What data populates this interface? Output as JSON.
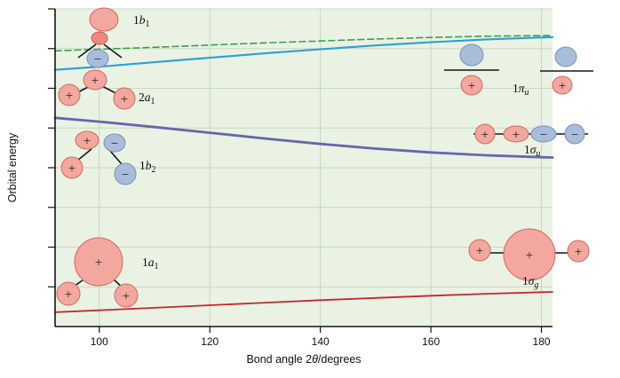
{
  "signs": {
    "plus": "+",
    "minus": "−"
  },
  "orbital_labels": {
    "b1": {
      "pre": "1",
      "sym": "b",
      "sub": "1"
    },
    "a1_upper": {
      "pre": "2",
      "sym": "a",
      "sub": "1"
    },
    "b2": {
      "pre": "1",
      "sym": "b",
      "sub": "2"
    },
    "a1_lower": {
      "pre": "1",
      "sym": "a",
      "sub": "1"
    },
    "piu": {
      "pre": "1",
      "sym": "π",
      "sub": "u"
    },
    "sigmau": {
      "pre": "1",
      "sym": "σ",
      "sub": "u"
    },
    "sigmag": {
      "pre": "1",
      "sym": "σ",
      "sub": "g"
    }
  },
  "figure": {
    "xlabel_parts": {
      "p1": "Bond angle 2",
      "p2": "θ",
      "p3": "/degrees"
    }
  },
  "chart_data": {
    "type": "line",
    "title": "",
    "xlabel": "Bond angle 2θ/degrees",
    "ylabel": "Orbital energy",
    "xlim": [
      92,
      182
    ],
    "ylim": [
      0,
      1
    ],
    "x_ticks": [
      100,
      120,
      140,
      160,
      180
    ],
    "y_ticks_normalized": [
      0.125,
      0.25,
      0.375,
      0.5,
      0.625,
      0.75,
      0.875,
      1.0
    ],
    "y_axis_numeric_labels": false,
    "grid": true,
    "legend_position": "none",
    "x": [
      92,
      100,
      110,
      120,
      130,
      140,
      150,
      160,
      170,
      180,
      182
    ],
    "series": [
      {
        "id": "1b1",
        "name": "1b1 → 1πu",
        "label_left": "1b1",
        "label_right": "1πu",
        "color": "#3f9d54",
        "dash": "7,4",
        "width": 1.6,
        "values": [
          0.868,
          0.873,
          0.879,
          0.886,
          0.893,
          0.899,
          0.905,
          0.91,
          0.914,
          0.916,
          0.916
        ]
      },
      {
        "id": "2a1",
        "name": "2a1 → 1πu",
        "label_left": "2a1",
        "label_right": "1πu",
        "color": "#2b9fd8",
        "dash": null,
        "width": 2.1,
        "values": [
          0.808,
          0.818,
          0.832,
          0.846,
          0.86,
          0.873,
          0.885,
          0.895,
          0.904,
          0.91,
          0.911
        ]
      },
      {
        "id": "1b2",
        "name": "1b2 → 1σu",
        "label_left": "1b2",
        "label_right": "1σu",
        "color": "#6467ae",
        "dash": null,
        "width": 2.8,
        "values": [
          0.657,
          0.645,
          0.628,
          0.61,
          0.592,
          0.575,
          0.56,
          0.548,
          0.539,
          0.533,
          0.532
        ]
      },
      {
        "id": "1a1",
        "name": "1a1 → 1σg",
        "label_left": "1a1",
        "label_right": "1σg",
        "color": "#c9252b",
        "dash": null,
        "width": 1.8,
        "values": [
          0.045,
          0.051,
          0.059,
          0.067,
          0.075,
          0.083,
          0.09,
          0.097,
          0.103,
          0.108,
          0.109
        ]
      }
    ]
  }
}
